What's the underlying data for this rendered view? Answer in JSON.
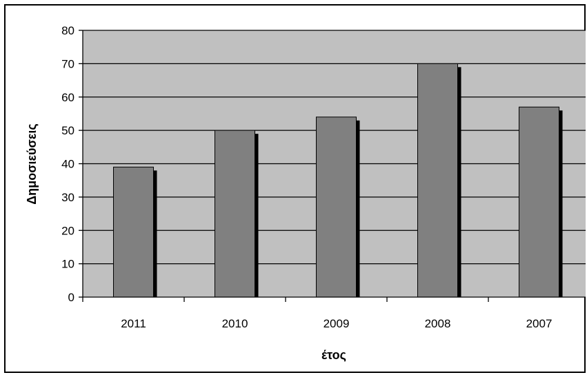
{
  "chart_data": {
    "type": "bar",
    "categories": [
      "2011",
      "2010",
      "2009",
      "2008",
      "2007"
    ],
    "values": [
      39,
      50,
      54,
      70,
      57
    ],
    "title": "",
    "xlabel": "έτος",
    "ylabel": "Δημοσιεύσεις",
    "ylim": [
      0,
      80
    ],
    "yticks": [
      0,
      10,
      20,
      30,
      40,
      50,
      60,
      70,
      80
    ],
    "grid": true,
    "legend": "none",
    "colors": {
      "plot_background": "#c0c0c0",
      "bar_fill": "#808080",
      "bar_shadow": "#000000",
      "gridline": "#000000"
    }
  }
}
